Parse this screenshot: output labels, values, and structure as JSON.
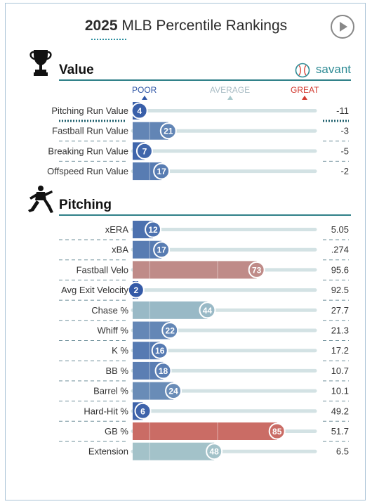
{
  "header": {
    "year": "2025",
    "title": "MLB Percentile Rankings"
  },
  "scale": {
    "poor": "POOR",
    "average": "AVERAGE",
    "great": "GREAT"
  },
  "brand": {
    "name": "savant"
  },
  "colors": {
    "accent": "#2e7f88",
    "poor": "#2f56a6",
    "average": "#a8c6ca",
    "great": "#d9453a"
  },
  "sections": {
    "value": "Value",
    "pitching": "Pitching"
  },
  "chart_data": [
    {
      "type": "bar",
      "title": "Value",
      "categories": [
        "Pitching Run Value",
        "Fastball Run Value",
        "Breaking Run Value",
        "Offspeed Run Value"
      ],
      "values": [
        4,
        21,
        7,
        17
      ],
      "stat_values": [
        "-11",
        "-3",
        "-5",
        "-2"
      ],
      "xlim": [
        0,
        100
      ]
    },
    {
      "type": "bar",
      "title": "Pitching",
      "categories": [
        "xERA",
        "xBA",
        "Fastball Velo",
        "Avg Exit Velocity",
        "Chase %",
        "Whiff %",
        "K %",
        "BB %",
        "Barrel %",
        "Hard-Hit %",
        "GB %",
        "Extension"
      ],
      "values": [
        12,
        17,
        73,
        2,
        44,
        22,
        16,
        18,
        24,
        6,
        85,
        48
      ],
      "stat_values": [
        "5.05",
        ".274",
        "95.6",
        "92.5",
        "27.7",
        "21.3",
        "17.2",
        "10.7",
        "10.1",
        "49.2",
        "51.7",
        "6.5"
      ],
      "xlim": [
        0,
        100
      ]
    }
  ]
}
